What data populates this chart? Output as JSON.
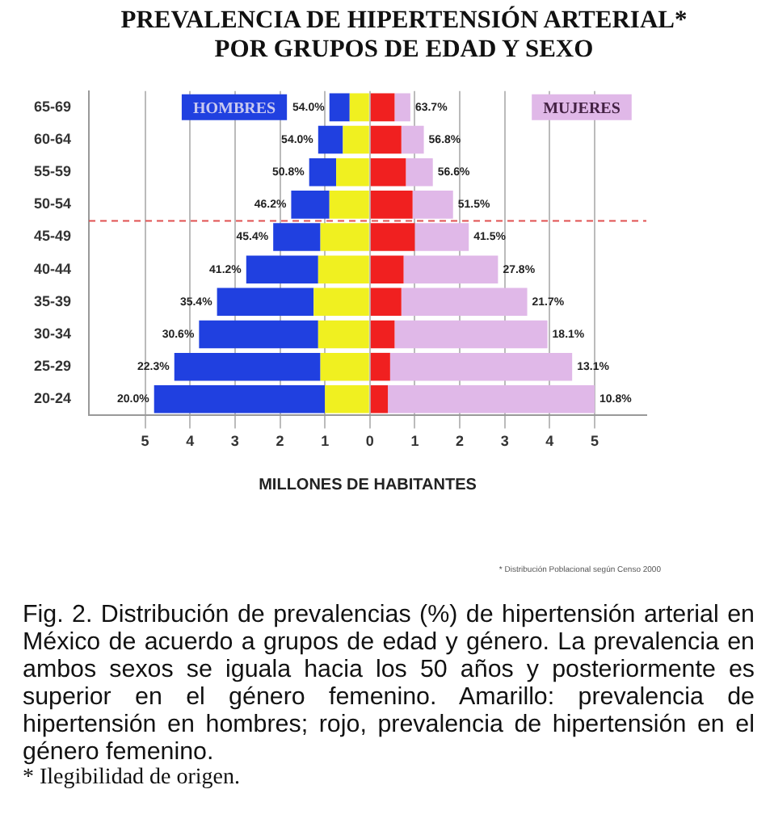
{
  "chart_data": {
    "type": "bar",
    "orientation": "horizontal",
    "stacked": true,
    "title": "PREVALENCIA DE HIPERTENSIÓN ARTERIAL* POR GRUPOS DE EDAD Y SEXO",
    "xlabel": "MILLONES DE HABITANTES",
    "categories": [
      "65-69",
      "60-64",
      "55-59",
      "50-54",
      "45-49",
      "40-44",
      "35-39",
      "30-34",
      "25-29",
      "20-24"
    ],
    "series": [
      {
        "color": "#f0f020",
        "values": [
          -0.45,
          -0.6,
          -0.75,
          -0.9,
          -1.1,
          -1.15,
          -1.25,
          -1.15,
          -1.1,
          -1.0
        ]
      },
      {
        "color": "#2040e0",
        "values": [
          -0.45,
          -0.55,
          -0.6,
          -0.85,
          -1.05,
          -1.6,
          -2.15,
          -2.65,
          -3.25,
          -3.8
        ]
      },
      {
        "color": "#f02020",
        "values": [
          0.55,
          0.7,
          0.8,
          0.95,
          1.0,
          0.75,
          0.7,
          0.55,
          0.45,
          0.4
        ]
      },
      {
        "color": "#e0b8e8",
        "values": [
          0.35,
          0.5,
          0.6,
          0.9,
          1.2,
          2.1,
          2.8,
          3.4,
          4.05,
          4.6
        ]
      }
    ],
    "xlim": [
      -6.25,
      6.15
    ],
    "xticks": [
      {
        "value": -5,
        "label": "5"
      },
      {
        "value": -4,
        "label": "4"
      },
      {
        "value": -3,
        "label": "3"
      },
      {
        "value": -2,
        "label": "2"
      },
      {
        "value": -1,
        "label": "1"
      },
      0,
      1,
      2,
      3,
      4,
      5
    ],
    "grid": "x",
    "ref_lines": [
      {
        "axis": "y",
        "value": "50-54",
        "color": "#e05050",
        "line_style": "dashed"
      }
    ],
    "annotations": [
      "HOMBRES",
      "MUJERES",
      {
        "text": "54.0%",
        "x": -0.9,
        "y": "65-69"
      },
      {
        "text": "54.0%",
        "x": -1.15,
        "y": "60-64"
      },
      {
        "text": "50.8%",
        "x": -1.35,
        "y": "55-59"
      },
      {
        "text": "46.2%",
        "x": -1.75,
        "y": "50-54"
      },
      {
        "text": "45.4%",
        "x": -2.15,
        "y": "45-49"
      },
      {
        "text": "41.2%",
        "x": -2.75,
        "y": "40-44"
      },
      {
        "text": "35.4%",
        "x": -3.4,
        "y": "35-39"
      },
      {
        "text": "30.6%",
        "x": -3.8,
        "y": "30-34"
      },
      {
        "text": "22.3%",
        "x": -4.35,
        "y": "25-29"
      },
      {
        "text": "20.0%",
        "x": -4.8,
        "y": "20-24"
      },
      {
        "text": "63.7%",
        "x": 0.9,
        "y": "65-69"
      },
      {
        "text": "56.8%",
        "x": 1.2,
        "y": "60-64"
      },
      {
        "text": "56.6%",
        "x": 1.4,
        "y": "55-59"
      },
      {
        "text": "51.5%",
        "x": 1.85,
        "y": "50-54"
      },
      {
        "text": "41.5%",
        "x": 2.2,
        "y": "45-49"
      },
      {
        "text": "27.8%",
        "x": 2.85,
        "y": "40-44"
      },
      {
        "text": "21.7%",
        "x": 3.5,
        "y": "35-39"
      },
      {
        "text": "18.1%",
        "x": 3.95,
        "y": "30-34"
      },
      {
        "text": "13.1%",
        "x": 4.5,
        "y": "25-29"
      },
      {
        "text": "10.8%",
        "x": 5.0,
        "y": "20-24"
      },
      "* Distribución Poblacional según Censo 2000",
      "Fig. 2. Distribución de prevalencias (%) de hipertensión arterial en México de acuerdo a grupos de edad y género. La prevalencia en ambos sexos se iguala hacia los 50 años y posteriormente es superior en el género femenino. Amarillo: prevalencia de hipertensión en hombres; rojo, prevalencia de hipertensión en el género femenino.",
      "* Ilegibilidad de origen."
    ]
  }
}
